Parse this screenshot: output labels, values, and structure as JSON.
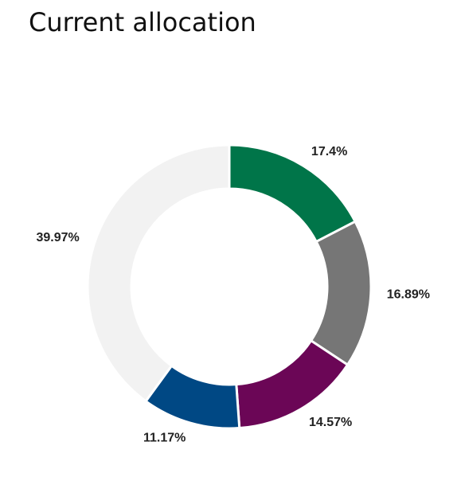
{
  "page": {
    "title": "Current allocation"
  },
  "chart_data": {
    "type": "pie",
    "variant": "donut",
    "title": "Current allocation",
    "unit": "%",
    "slices": [
      {
        "label": "17.4%",
        "value": 17.4,
        "color": "#007549"
      },
      {
        "label": "16.89%",
        "value": 16.89,
        "color": "#767676"
      },
      {
        "label": "14.57%",
        "value": 14.57,
        "color": "#6b0656"
      },
      {
        "label": "11.17%",
        "value": 11.17,
        "color": "#004884"
      },
      {
        "label": "39.97%",
        "value": 39.97,
        "color": "#f2f2f2"
      }
    ],
    "start_angle": "top",
    "direction": "clockwise",
    "legend": "none"
  }
}
